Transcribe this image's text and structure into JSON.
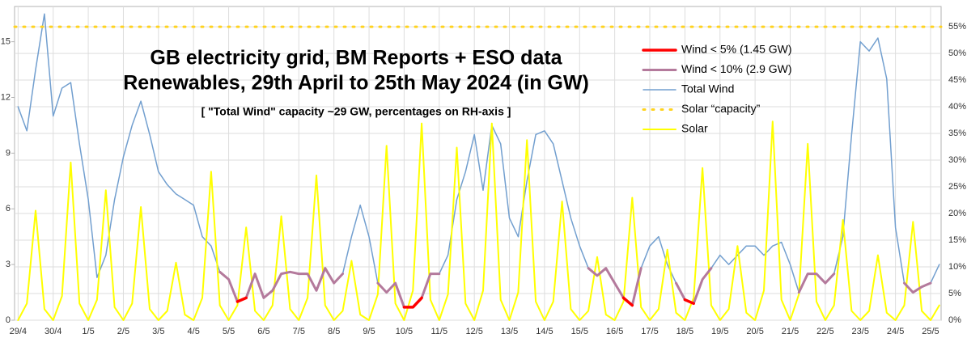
{
  "chart_data": {
    "type": "line",
    "title": "GB electricity grid, BM Reports + ESO data",
    "subtitle": "Renewables, 29th April to 25th May 2024 (in GW)",
    "annotation": "[ \"Total Wind\" capacity ~29 GW, percentages on RH-axis ]",
    "x": [
      0,
      0.25,
      0.5,
      0.75,
      1,
      1.25,
      1.5,
      1.75,
      2,
      2.25,
      2.5,
      2.75,
      3,
      3.25,
      3.5,
      3.75,
      4,
      4.25,
      4.5,
      4.75,
      5,
      5.25,
      5.5,
      5.75,
      6,
      6.25,
      6.5,
      6.75,
      7,
      7.25,
      7.5,
      7.75,
      8,
      8.25,
      8.5,
      8.75,
      9,
      9.25,
      9.5,
      9.75,
      10,
      10.25,
      10.5,
      10.75,
      11,
      11.25,
      11.5,
      11.75,
      12,
      12.25,
      12.5,
      12.75,
      13,
      13.25,
      13.5,
      13.75,
      14,
      14.25,
      14.5,
      14.75,
      15,
      15.25,
      15.5,
      15.75,
      16,
      16.25,
      16.5,
      16.75,
      17,
      17.25,
      17.5,
      17.75,
      18,
      18.25,
      18.5,
      18.75,
      19,
      19.25,
      19.5,
      19.75,
      20,
      20.25,
      20.5,
      20.75,
      21,
      21.25,
      21.5,
      21.75,
      22,
      22.25,
      22.5,
      22.75,
      23,
      23.25,
      23.5,
      23.75,
      24,
      24.25,
      24.5,
      24.75,
      25,
      25.25,
      25.5,
      25.75,
      26,
      26.25
    ],
    "series": [
      {
        "name": "Wind < 5% (1.45 GW)",
        "color": "#ff0000",
        "width": 3.5,
        "values": [
          null,
          null,
          null,
          null,
          null,
          null,
          null,
          null,
          null,
          null,
          null,
          null,
          null,
          null,
          null,
          null,
          null,
          null,
          null,
          null,
          null,
          null,
          null,
          null,
          null,
          1.0,
          1.2,
          null,
          1.2,
          null,
          null,
          null,
          null,
          null,
          null,
          null,
          null,
          null,
          null,
          null,
          null,
          null,
          null,
          null,
          0.7,
          0.7,
          1.2,
          null,
          null,
          null,
          null,
          null,
          null,
          null,
          null,
          null,
          null,
          null,
          null,
          null,
          null,
          null,
          null,
          null,
          null,
          null,
          null,
          null,
          null,
          1.2,
          0.8,
          null,
          null,
          null,
          null,
          null,
          1.1,
          0.9,
          null,
          null,
          null,
          null,
          null,
          null,
          null,
          null,
          null,
          null,
          null,
          null,
          null,
          null,
          null,
          null,
          null,
          null,
          null,
          null,
          null,
          null,
          null,
          null,
          null,
          null,
          null,
          null
        ]
      },
      {
        "name": "Wind < 10% (2.9 GW)",
        "color": "#b47a9c",
        "width": 3,
        "values": [
          null,
          null,
          null,
          null,
          null,
          null,
          null,
          null,
          null,
          2.3,
          null,
          null,
          null,
          null,
          null,
          null,
          null,
          null,
          null,
          null,
          null,
          null,
          null,
          2.6,
          2.2,
          1.0,
          1.2,
          2.5,
          1.2,
          1.6,
          2.5,
          2.6,
          2.5,
          2.5,
          1.6,
          2.8,
          2.0,
          2.5,
          null,
          null,
          null,
          2.0,
          1.5,
          2.0,
          0.7,
          0.7,
          1.2,
          2.5,
          2.5,
          null,
          null,
          null,
          null,
          null,
          null,
          null,
          null,
          null,
          null,
          null,
          null,
          null,
          null,
          null,
          null,
          2.8,
          2.4,
          2.8,
          2.0,
          1.2,
          0.8,
          2.8,
          null,
          null,
          null,
          2.0,
          1.1,
          0.9,
          2.2,
          2.8,
          null,
          null,
          null,
          null,
          null,
          null,
          null,
          null,
          null,
          1.5,
          2.5,
          2.5,
          2.0,
          2.5,
          null,
          null,
          null,
          null,
          null,
          null,
          null,
          2.0,
          1.5,
          1.8,
          2.0,
          null
        ]
      },
      {
        "name": "Total Wind",
        "color": "#729fcf",
        "width": 1.5,
        "values": [
          11.5,
          10.2,
          13.5,
          16.5,
          11.0,
          12.5,
          12.8,
          9.5,
          6.5,
          2.3,
          3.5,
          6.5,
          8.8,
          10.5,
          11.8,
          10.0,
          8.0,
          7.3,
          6.8,
          6.5,
          6.2,
          4.5,
          4.0,
          2.6,
          2.2,
          1.0,
          1.2,
          2.5,
          1.2,
          1.6,
          2.5,
          2.6,
          2.5,
          2.5,
          1.6,
          2.8,
          2.0,
          2.5,
          4.5,
          6.2,
          4.5,
          2.0,
          1.5,
          2.0,
          0.7,
          0.7,
          1.2,
          2.5,
          2.5,
          3.5,
          6.5,
          8.0,
          10.0,
          7.0,
          10.5,
          9.5,
          5.5,
          4.5,
          7.5,
          10.0,
          10.2,
          9.5,
          7.5,
          5.5,
          4.0,
          2.8,
          2.4,
          2.8,
          2.0,
          1.2,
          0.8,
          2.8,
          4.0,
          4.5,
          3.0,
          2.0,
          1.1,
          0.9,
          2.2,
          2.8,
          3.5,
          3.0,
          3.5,
          4.0,
          4.0,
          3.5,
          4.0,
          4.2,
          3.0,
          1.5,
          2.5,
          2.5,
          2.0,
          2.5,
          4.5,
          10.0,
          15.0,
          14.5,
          15.2,
          13.0,
          5.0,
          2.0,
          1.5,
          1.8,
          2.0,
          3.0
        ]
      },
      {
        "name": "Solar “capacity”",
        "color": "#ffd320",
        "style": "dotted",
        "axis": "y2",
        "value": 55
      },
      {
        "name": "Solar",
        "color": "#ffff00",
        "width": 2,
        "values": [
          0,
          0.9,
          5.9,
          0.6,
          0,
          1.3,
          8.5,
          0.9,
          0,
          1.1,
          7.0,
          0.7,
          0,
          0.9,
          6.1,
          0.6,
          0,
          0.5,
          3.1,
          0.3,
          0,
          1.2,
          8.0,
          0.8,
          0,
          0.8,
          5.0,
          0.5,
          0,
          0.8,
          5.6,
          0.6,
          0,
          1.2,
          7.8,
          0.8,
          0,
          0.5,
          3.2,
          0.3,
          0,
          1.4,
          9.4,
          0.9,
          0,
          1.6,
          10.6,
          1.1,
          0,
          1.4,
          9.3,
          0.9,
          0,
          1.6,
          10.6,
          1.1,
          0,
          1.5,
          9.7,
          1.0,
          0,
          1.0,
          6.4,
          0.6,
          0,
          0.5,
          3.4,
          0.3,
          0,
          1.0,
          6.6,
          0.7,
          0,
          0.6,
          3.8,
          0.4,
          0,
          1.2,
          8.2,
          0.8,
          0,
          0.6,
          4.0,
          0.4,
          0,
          1.6,
          10.7,
          1.1,
          0,
          1.4,
          9.5,
          1.0,
          0,
          0.8,
          5.4,
          0.5,
          0,
          0.5,
          3.5,
          0.4,
          0,
          0.8,
          5.3,
          0.5,
          0,
          0.8
        ]
      }
    ],
    "draw_order": [
      2,
      4,
      3,
      1,
      0
    ],
    "xlim": [
      -0.1,
      26.3
    ],
    "xticks": [
      {
        "value": 0,
        "label": "29/4"
      },
      {
        "value": 1,
        "label": "30/4"
      },
      {
        "value": 2,
        "label": "1/5"
      },
      {
        "value": 3,
        "label": "2/5"
      },
      {
        "value": 4,
        "label": "3/5"
      },
      {
        "value": 5,
        "label": "4/5"
      },
      {
        "value": 6,
        "label": "5/5"
      },
      {
        "value": 7,
        "label": "6/5"
      },
      {
        "value": 8,
        "label": "7/5"
      },
      {
        "value": 9,
        "label": "8/5"
      },
      {
        "value": 10,
        "label": "9/5"
      },
      {
        "value": 11,
        "label": "10/5"
      },
      {
        "value": 12,
        "label": "11/5"
      },
      {
        "value": 13,
        "label": "12/5"
      },
      {
        "value": 14,
        "label": "13/5"
      },
      {
        "value": 15,
        "label": "14/5"
      },
      {
        "value": 16,
        "label": "15/5"
      },
      {
        "value": 17,
        "label": "16/5"
      },
      {
        "value": 18,
        "label": "17/5"
      },
      {
        "value": 19,
        "label": "18/5"
      },
      {
        "value": 20,
        "label": "19/5"
      },
      {
        "value": 21,
        "label": "20/5"
      },
      {
        "value": 22,
        "label": "21/5"
      },
      {
        "value": 23,
        "label": "22/5"
      },
      {
        "value": 24,
        "label": "23/5"
      },
      {
        "value": 25,
        "label": "24/5"
      },
      {
        "value": 26,
        "label": "25/5"
      }
    ],
    "ylim": [
      0,
      16.9
    ],
    "yticks": [
      0,
      3,
      6,
      9,
      12,
      15
    ],
    "y2lim": [
      0,
      58.8
    ],
    "y2ticks": [
      {
        "value": 0,
        "label": "0%"
      },
      {
        "value": 5,
        "label": "5%"
      },
      {
        "value": 10,
        "label": "10%"
      },
      {
        "value": 15,
        "label": "15%"
      },
      {
        "value": 20,
        "label": "20%"
      },
      {
        "value": 25,
        "label": "25%"
      },
      {
        "value": 30,
        "label": "30%"
      },
      {
        "value": 35,
        "label": "35%"
      },
      {
        "value": 40,
        "label": "40%"
      },
      {
        "value": 45,
        "label": "45%"
      },
      {
        "value": 50,
        "label": "50%"
      },
      {
        "value": 55,
        "label": "55%"
      }
    ],
    "grid": true
  }
}
